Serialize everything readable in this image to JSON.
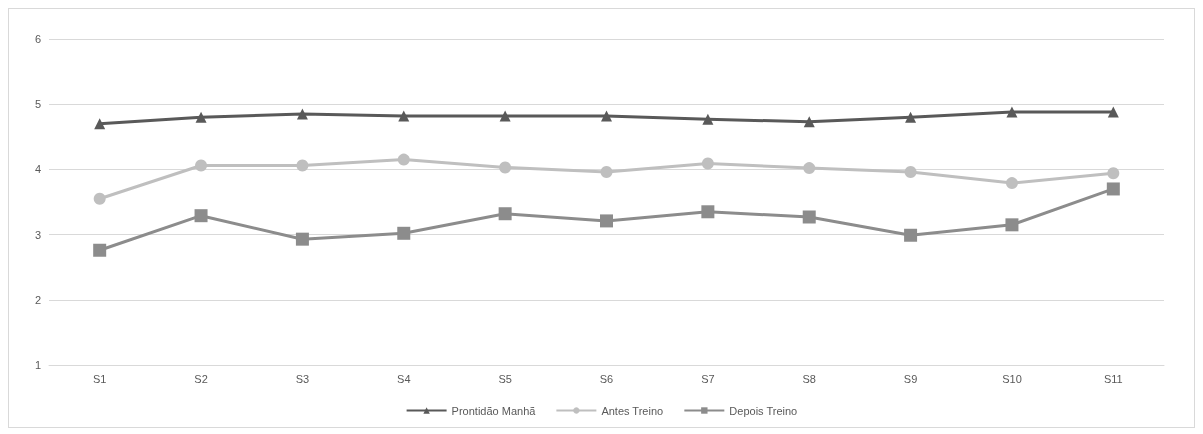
{
  "chart_data": {
    "type": "line",
    "categories": [
      "S1",
      "S2",
      "S3",
      "S4",
      "S5",
      "S6",
      "S7",
      "S8",
      "S9",
      "S10",
      "S11"
    ],
    "series": [
      {
        "name": "Prontidão Manhã",
        "color": "#595959",
        "marker": "triangle",
        "values": [
          4.7,
          4.8,
          4.85,
          4.82,
          4.82,
          4.82,
          4.77,
          4.73,
          4.8,
          4.88,
          4.88
        ]
      },
      {
        "name": "Antes Treino",
        "color": "#bfbfbf",
        "marker": "circle",
        "values": [
          3.55,
          4.06,
          4.06,
          4.15,
          4.03,
          3.96,
          4.09,
          4.02,
          3.96,
          3.79,
          3.94
        ]
      },
      {
        "name": "Depois Treino",
        "color": "#8c8c8c",
        "marker": "square",
        "values": [
          2.76,
          3.29,
          2.93,
          3.02,
          3.32,
          3.21,
          3.35,
          3.27,
          2.99,
          3.15,
          3.7
        ]
      }
    ],
    "ylim": [
      1,
      6
    ],
    "yticks": [
      1,
      2,
      3,
      4,
      5,
      6
    ],
    "grid": "y",
    "legend": "bottom",
    "line_style": "solid"
  }
}
